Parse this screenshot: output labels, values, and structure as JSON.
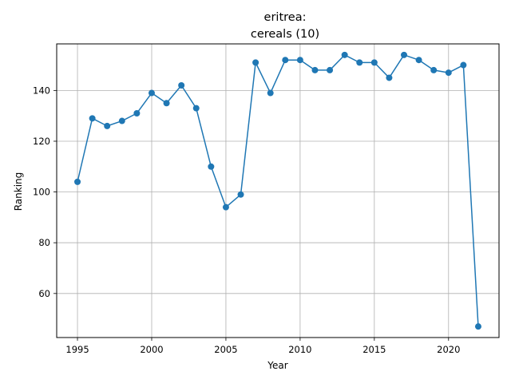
{
  "chart_data": {
    "type": "line",
    "title_line1": "eritrea:",
    "title_line2": "cereals (10)",
    "xlabel": "Year",
    "ylabel": "Ranking",
    "xlim": [
      1993.6,
      2023.4
    ],
    "ylim": [
      42.65,
      158.35
    ],
    "xticks": [
      1995,
      2000,
      2005,
      2010,
      2015,
      2020
    ],
    "yticks": [
      60,
      80,
      100,
      120,
      140
    ],
    "grid": true,
    "marker": "circle",
    "color": "#1f77b4",
    "series": [
      {
        "x": [
          1995,
          1996,
          1997,
          1998,
          1999,
          2000,
          2001,
          2002,
          2003,
          2004,
          2005,
          2006,
          2007,
          2008,
          2009,
          2010,
          2011,
          2012,
          2013,
          2014,
          2015,
          2016,
          2017,
          2018,
          2019,
          2020,
          2021,
          2022
        ],
        "y": [
          104,
          129,
          126,
          128,
          131,
          139,
          135,
          142,
          133,
          110,
          94,
          99,
          151,
          139,
          152,
          152,
          148,
          148,
          154,
          151,
          151,
          145,
          154,
          152,
          148,
          147,
          150,
          47
        ]
      }
    ]
  }
}
